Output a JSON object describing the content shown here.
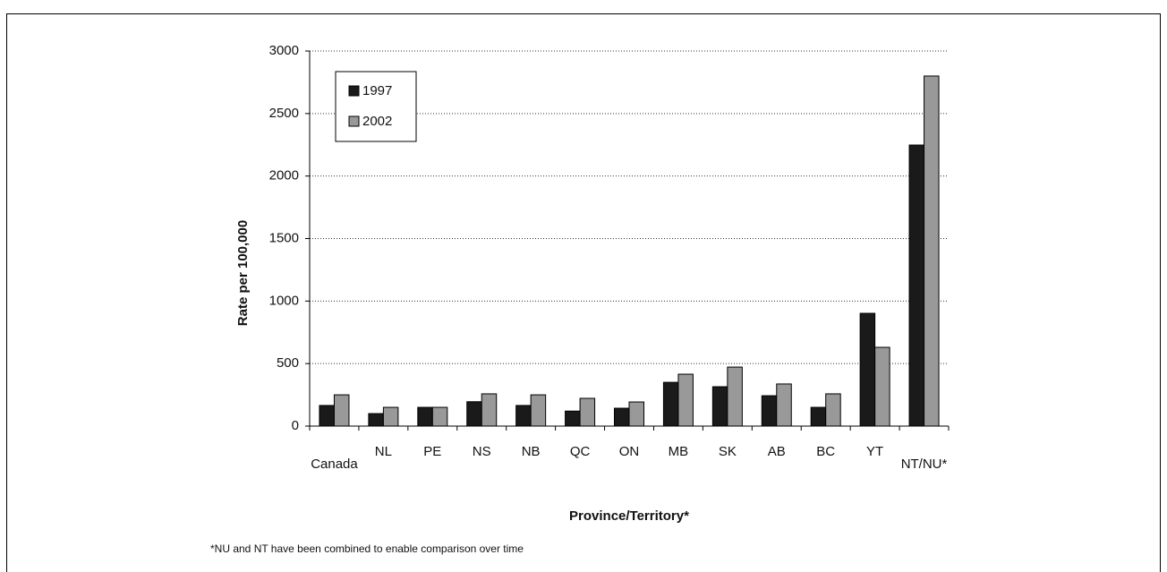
{
  "chart_data": {
    "type": "bar",
    "x_label": "Province/Territory*",
    "y_label": "Rate per 100,000",
    "footnote": "*NU and NT have been combined to enable comparison over time",
    "categories": [
      "Canada",
      "NL",
      "PE",
      "NS",
      "NB",
      "QC",
      "ON",
      "MB",
      "SK",
      "AB",
      "BC",
      "YT",
      "NT/NU*"
    ],
    "series": [
      {
        "name": "1997",
        "color": "#1a1a1a",
        "values": [
          165,
          100,
          150,
          195,
          165,
          120,
          143,
          350,
          315,
          243,
          150,
          902,
          2248
        ]
      },
      {
        "name": "2002",
        "color": "#999999",
        "values": [
          250,
          150,
          150,
          258,
          250,
          222,
          193,
          415,
          472,
          337,
          258,
          630,
          2800
        ]
      }
    ],
    "ylim": [
      0,
      3000
    ],
    "yticks": [
      0,
      500,
      1000,
      1500,
      2000,
      2500,
      3000
    ],
    "grid": true,
    "legend": "upper left"
  }
}
